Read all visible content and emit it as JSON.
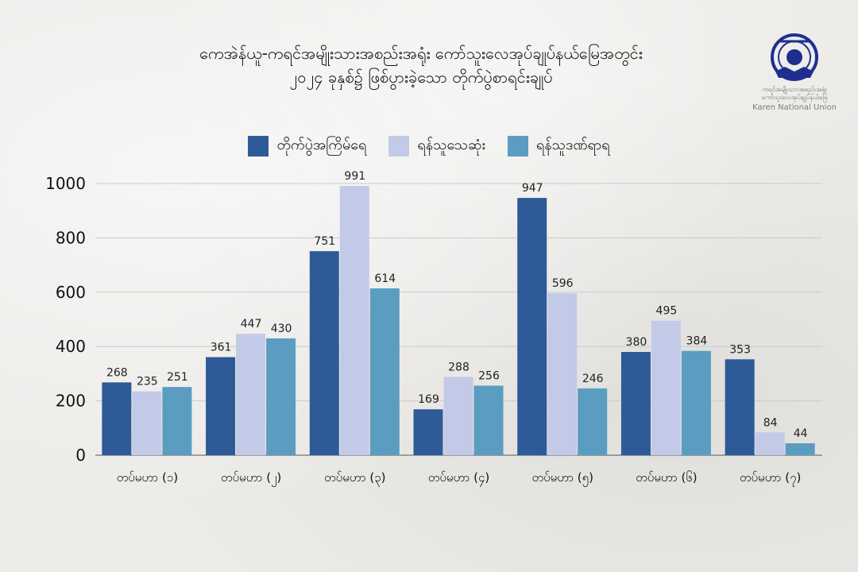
{
  "header": {
    "title_line1": "ကေအဲန်ယူ-ကရင်အမျိုးသားအစည်းအရုံး ကော်သူးလေအုပ်ချုပ်နယ်မြေအတွင်း",
    "title_line2": "၂၀၂၄ ခုနှစ်၌ ဖြစ်ပွားခဲ့သော တိုက်ပွဲစာရင်းချုပ်"
  },
  "logo": {
    "caption_line1": "ကရင်အမျိုးသားအစည်းအရုံး",
    "caption_line2": "ကော်သူးလေအုပ်ချုပ်နယ်မြေ",
    "name": "Karen National Union",
    "icon": "knu-emblem-icon",
    "color": "#1f2f8f"
  },
  "colors": {
    "series1": "#2e5a97",
    "series2": "#c3cae8",
    "series3": "#5b9dc1",
    "grid": "#c9c9c9",
    "axis": "#555555"
  },
  "chart_data": {
    "type": "bar",
    "categories": [
      "တပ်မဟာ (၁)",
      "တပ်မဟာ (၂)",
      "တပ်မဟာ (၃)",
      "တပ်မဟာ (၄)",
      "တပ်မဟာ (၅)",
      "တပ်မဟာ (၆)",
      "တပ်မဟာ (၇)"
    ],
    "series": [
      {
        "name": "တိုက်ပွဲအကြိမ်ရေ",
        "values": [
          268,
          361,
          751,
          169,
          947,
          380,
          353
        ]
      },
      {
        "name": "ရန်သူသေဆုံး",
        "values": [
          235,
          447,
          991,
          288,
          596,
          495,
          84
        ]
      },
      {
        "name": "ရန်သူဒဏ်ရာရ",
        "values": [
          251,
          430,
          614,
          256,
          246,
          384,
          44
        ]
      }
    ],
    "yticks": [
      0,
      200,
      400,
      600,
      800,
      1000
    ],
    "ylim": [
      0,
      1000
    ],
    "grid": true,
    "legend": "top-center"
  }
}
